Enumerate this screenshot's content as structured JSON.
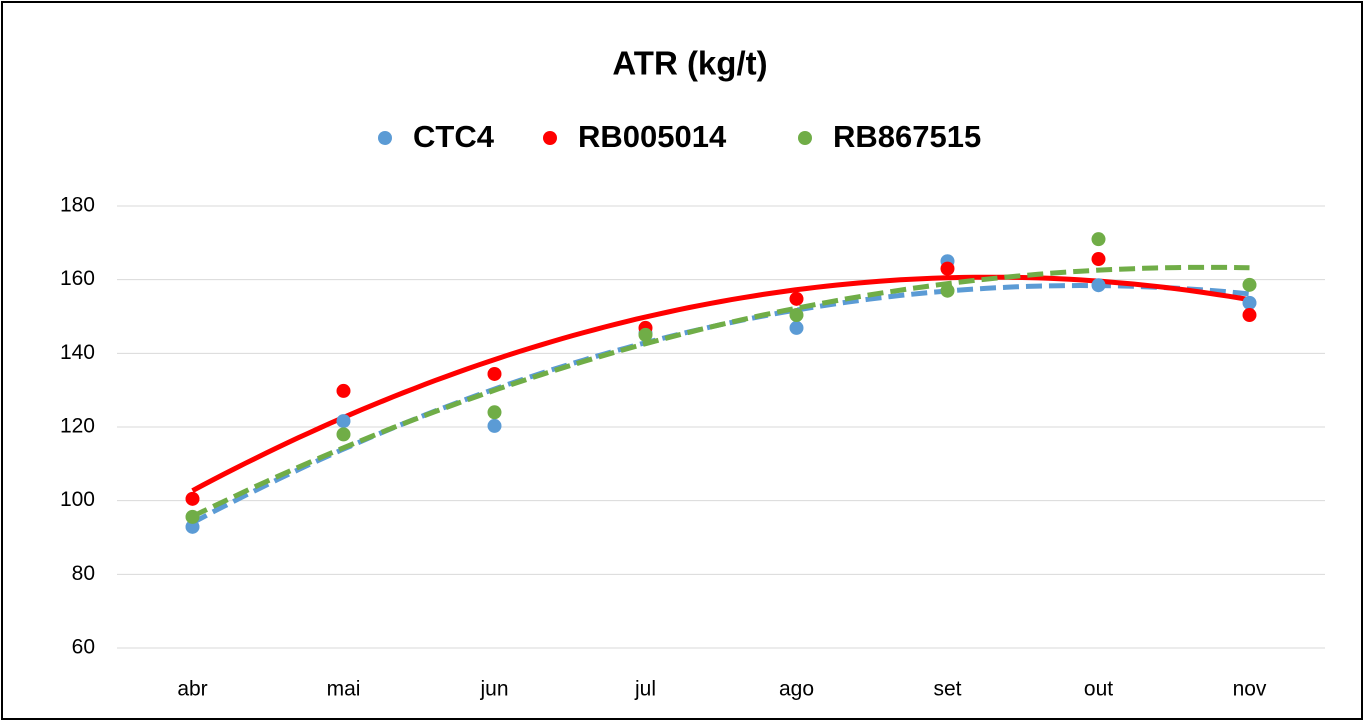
{
  "chart_data": {
    "type": "scatter",
    "title": "ATR (kg/t)",
    "categories": [
      "abr",
      "mai",
      "jun",
      "jul",
      "ago",
      "set",
      "out",
      "nov"
    ],
    "series": [
      {
        "name": "CTC4",
        "color": "#5b9bd5",
        "values": [
          92.9,
          121.6,
          120.3,
          145.5,
          146.9,
          165,
          158.5,
          153.7
        ],
        "trendline": {
          "type": "polynomial",
          "order": 2,
          "dash": true
        }
      },
      {
        "name": "RB005014",
        "color": "#ff0000",
        "values": [
          100.5,
          129.8,
          134.4,
          146.9,
          154.8,
          163,
          165.6,
          150.4
        ],
        "trendline": {
          "type": "polynomial",
          "order": 2,
          "dash": false
        }
      },
      {
        "name": "RB867515",
        "color": "#70ad47",
        "values": [
          95.6,
          118,
          124,
          145,
          150.4,
          157,
          171,
          158.6
        ],
        "trendline": {
          "type": "polynomial",
          "order": 2,
          "dash": true
        }
      }
    ],
    "ylim": [
      60,
      180
    ],
    "yticks": [
      60,
      80,
      100,
      120,
      140,
      160,
      180
    ],
    "grid": true,
    "legend": "top"
  }
}
